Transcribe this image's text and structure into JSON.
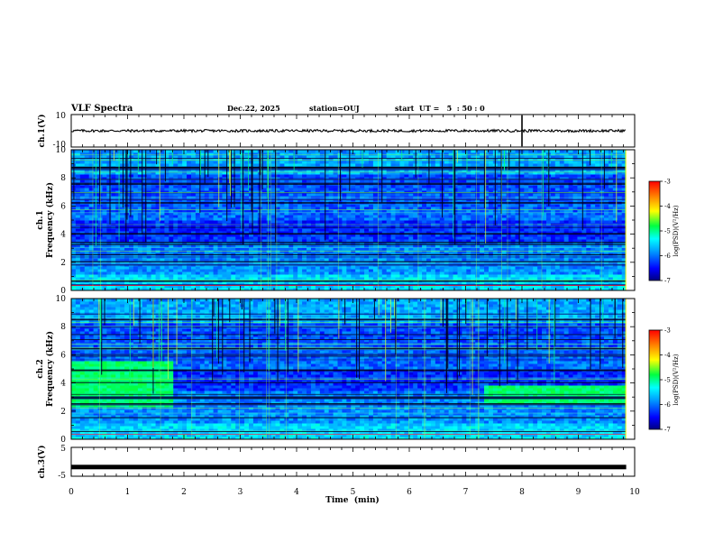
{
  "chart_data": {
    "type": "spectrogram",
    "title": "VLF Spectra",
    "date": "Dec.22, 2025",
    "station": "station=OUJ",
    "start_ut": "start  UT =   5  : 50 : 0",
    "xlabel": "Time  (min)",
    "xlim": [
      0,
      10
    ],
    "x_ticks": [
      "0",
      "1",
      "2",
      "3",
      "4",
      "5",
      "6",
      "7",
      "8",
      "9",
      "10"
    ],
    "panels": [
      {
        "id": "ch1-waveform",
        "type": "line",
        "ylabel": "ch.1(V)",
        "ylim": [
          -10,
          10
        ],
        "y_ticks": [
          "10",
          "-10"
        ],
        "baseline": 0,
        "spike_time_min": 8.0
      },
      {
        "id": "ch1-spectrogram",
        "type": "heatmap",
        "ylabel_line1": "ch.1",
        "ylabel_line2": "Frequency  (kHz)",
        "ylim": [
          0,
          10
        ],
        "y_ticks": [
          "0",
          "2",
          "4",
          "6",
          "8",
          "10"
        ],
        "colorbar_label": "log(PSD)(V²/Hz)",
        "colorbar_ticks": [
          "-3",
          "-4",
          "-5",
          "-6",
          "-7"
        ],
        "clim": [
          -7,
          -3
        ],
        "data_end_min": 9.85
      },
      {
        "id": "ch2-spectrogram",
        "type": "heatmap",
        "ylabel_line1": "ch.2",
        "ylabel_line2": "Frequency  (kHz)",
        "ylim": [
          0,
          10
        ],
        "y_ticks": [
          "0",
          "2",
          "4",
          "6",
          "8",
          "10"
        ],
        "colorbar_label": "log(PSD)(V²/Hz)",
        "colorbar_ticks": [
          "-3",
          "-4",
          "-5",
          "-6",
          "-7"
        ],
        "clim": [
          -7,
          -3
        ],
        "data_end_min": 9.85,
        "enhanced_bands": [
          {
            "t0": 0.0,
            "t1": 1.85,
            "f0": 2.4,
            "f1": 5.6
          },
          {
            "t0": 7.35,
            "t1": 9.85,
            "f0": 2.5,
            "f1": 3.8
          }
        ]
      },
      {
        "id": "ch3-waveform",
        "type": "line",
        "ylabel": "ch.3(V)",
        "ylim": [
          -5,
          5
        ],
        "y_ticks": [
          "5",
          "-5"
        ],
        "baseline": -1.8
      }
    ]
  }
}
